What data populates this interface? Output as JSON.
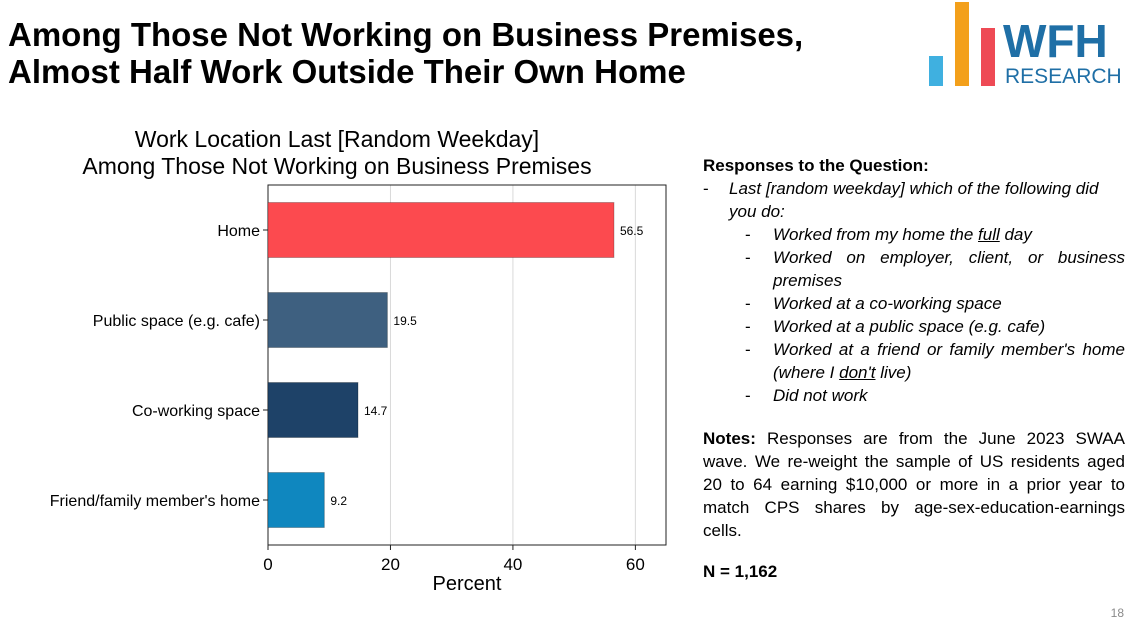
{
  "slide": {
    "headline_line1": "Among Those Not Working on Business Premises,",
    "headline_line2": "Almost Half Work Outside Their Own Home",
    "page_number": "18"
  },
  "logo": {
    "text_main": "WFH",
    "text_sub": "RESEARCH",
    "colors": {
      "bar_blue_light": "#3fb0e0",
      "bar_orange": "#f3a01b",
      "bar_red": "#ee4a55",
      "text_blue": "#1f6fa6"
    }
  },
  "chart_data": {
    "type": "bar",
    "orientation": "horizontal",
    "title_line1": "Work Location Last [Random Weekday]",
    "title_line2": "Among Those Not Working on Business Premises",
    "xlabel": "Percent",
    "categories": [
      "Home",
      "Public space (e.g. cafe)",
      "Co-working space",
      "Friend/family member's home"
    ],
    "values": [
      56.5,
      19.5,
      14.7,
      9.2
    ],
    "value_labels": [
      "56.5",
      "19.5",
      "14.7",
      "9.2"
    ],
    "bar_colors": [
      "#fc4a4f",
      "#3e6080",
      "#1e4268",
      "#0f87bf"
    ],
    "xlim": [
      0,
      65
    ],
    "xticks": [
      0,
      20,
      40,
      60
    ],
    "xtick_labels": [
      "0",
      "20",
      "40",
      "60"
    ],
    "grid": "vertical"
  },
  "notes_panel": {
    "heading": "Responses to the Question:",
    "question_dash": "-",
    "question": "Last [random weekday] which of the following did you do:",
    "options": [
      "Worked from my home the full day",
      "Worked on employer, client, or business premises",
      "Worked at a co-working space",
      "Worked at a public space (e.g. cafe)",
      "Worked at a friend or family member's home (where I don't live)",
      "Did not work"
    ],
    "notes_label": "Notes:",
    "notes_text": "Responses are from the June 2023 SWAA wave. We re-weight the sample of US residents aged 20 to 64 earning $10,000 or more in a prior year to match CPS shares by age-sex-education-earnings cells.",
    "n_text": "N = 1,162"
  }
}
